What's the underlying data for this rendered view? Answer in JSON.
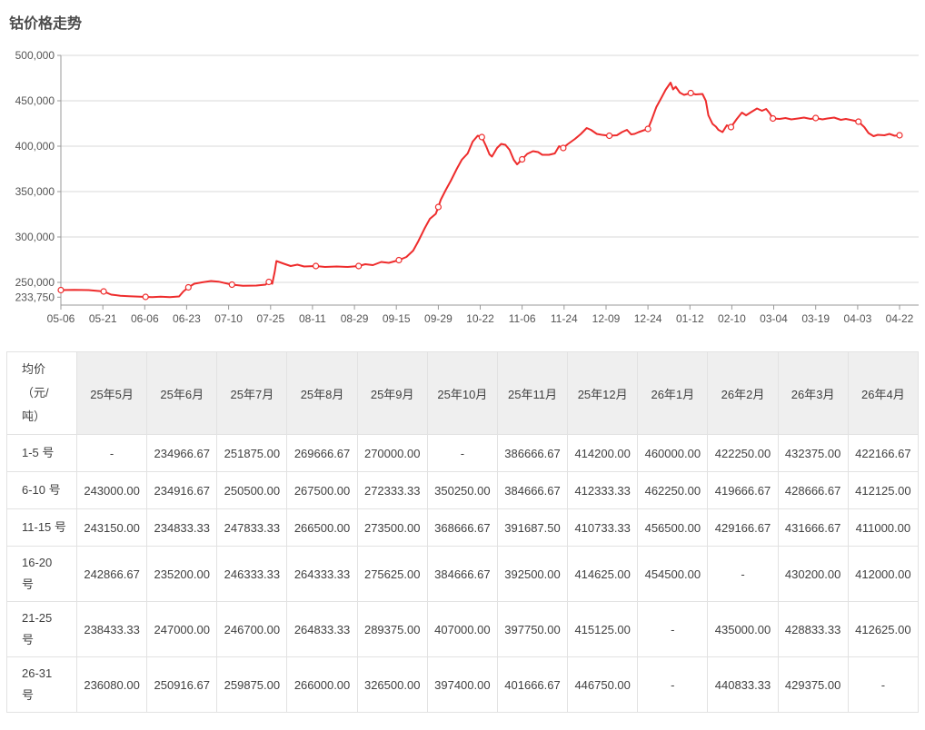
{
  "title": "钴价格走势",
  "chart_data": {
    "type": "line",
    "title": "钴价格走势",
    "xlabel": "",
    "ylabel": "",
    "grid": true,
    "legend": false,
    "colors": {
      "line": "#ee2c2c",
      "grid": "#d9d9d9",
      "axis": "#999999"
    },
    "axis": {
      "ymin": 225000,
      "ymax": 500000,
      "yticks": [
        {
          "value": 250000,
          "label": "250,000"
        },
        {
          "value": 300000,
          "label": "300,000"
        },
        {
          "value": 350000,
          "label": "350,000"
        },
        {
          "value": 400000,
          "label": "400,000"
        },
        {
          "value": 450000,
          "label": "450,000"
        },
        {
          "value": 500000,
          "label": "500,000"
        }
      ],
      "ymin_point": {
        "value": 233750,
        "label": "233,750"
      },
      "xticks": [
        "05-06",
        "05-21",
        "06-06",
        "06-23",
        "07-10",
        "07-25",
        "08-11",
        "08-29",
        "09-15",
        "09-29",
        "10-22",
        "11-06",
        "11-24",
        "12-09",
        "12-24",
        "01-12",
        "02-10",
        "03-04",
        "03-19",
        "04-03",
        "04-22"
      ]
    },
    "series": [
      {
        "name": "钴均价(元/吨)",
        "color": "#ee2c2c",
        "points": [
          [
            0,
            241500
          ],
          [
            1.6,
            241800
          ],
          [
            3.3,
            241500
          ],
          [
            5.1,
            240000
          ],
          [
            6,
            236500
          ],
          [
            7.1,
            235300
          ],
          [
            8.1,
            234800
          ],
          [
            10.1,
            234000
          ],
          [
            10.9,
            233800
          ],
          [
            11.9,
            234300
          ],
          [
            13,
            233750
          ],
          [
            14.1,
            234500
          ],
          [
            14.6,
            240000
          ],
          [
            15.2,
            244500
          ],
          [
            15.9,
            248500
          ],
          [
            16.8,
            250000
          ],
          [
            17.9,
            251500
          ],
          [
            18.8,
            250800
          ],
          [
            20.4,
            247500
          ],
          [
            21.7,
            246300
          ],
          [
            23.3,
            246500
          ],
          [
            24.4,
            247500
          ],
          [
            24.8,
            250500
          ],
          [
            25.2,
            248500
          ],
          [
            25.5,
            262000
          ],
          [
            25.7,
            273500
          ],
          [
            26.6,
            270500
          ],
          [
            27.4,
            268000
          ],
          [
            28.2,
            269500
          ],
          [
            29,
            267500
          ],
          [
            30.4,
            268000
          ],
          [
            31.5,
            267000
          ],
          [
            32.9,
            267500
          ],
          [
            34.2,
            267000
          ],
          [
            35.5,
            268000
          ],
          [
            36.3,
            270000
          ],
          [
            37.2,
            269000
          ],
          [
            38.2,
            272500
          ],
          [
            39.1,
            271500
          ],
          [
            40.3,
            274500
          ],
          [
            41.2,
            278000
          ],
          [
            42,
            285000
          ],
          [
            42.6,
            295000
          ],
          [
            43.4,
            310000
          ],
          [
            44,
            320000
          ],
          [
            44.7,
            325500
          ],
          [
            45,
            333000
          ],
          [
            45.3,
            341000
          ],
          [
            45.9,
            352000
          ],
          [
            46.5,
            362000
          ],
          [
            47.2,
            375000
          ],
          [
            47.8,
            385000
          ],
          [
            48.5,
            392000
          ],
          [
            49.1,
            405000
          ],
          [
            49.7,
            411500
          ],
          [
            50.2,
            410000
          ],
          [
            50.7,
            400000
          ],
          [
            51.1,
            391000
          ],
          [
            51.4,
            388500
          ],
          [
            52,
            398000
          ],
          [
            52.5,
            402500
          ],
          [
            53,
            401500
          ],
          [
            53.5,
            396000
          ],
          [
            54,
            385000
          ],
          [
            54.4,
            380000
          ],
          [
            55,
            385500
          ],
          [
            55.6,
            391500
          ],
          [
            56.3,
            394500
          ],
          [
            56.9,
            393500
          ],
          [
            57.4,
            390500
          ],
          [
            58.2,
            390500
          ],
          [
            58.9,
            392000
          ],
          [
            59.4,
            400000
          ],
          [
            59.9,
            398000
          ],
          [
            60.4,
            402000
          ],
          [
            61.3,
            408000
          ],
          [
            62,
            413500
          ],
          [
            62.7,
            420000
          ],
          [
            63.2,
            418000
          ],
          [
            63.9,
            413500
          ],
          [
            64.5,
            412500
          ],
          [
            65.4,
            411500
          ],
          [
            66.3,
            412000
          ],
          [
            66.9,
            415500
          ],
          [
            67.5,
            418000
          ],
          [
            68,
            413000
          ],
          [
            68.4,
            413500
          ],
          [
            68.9,
            415500
          ],
          [
            69.5,
            417500
          ],
          [
            70,
            419000
          ],
          [
            70.4,
            428000
          ],
          [
            71,
            443000
          ],
          [
            71.7,
            455000
          ],
          [
            72.1,
            462000
          ],
          [
            72.7,
            470000
          ],
          [
            73,
            462500
          ],
          [
            73.3,
            465500
          ],
          [
            73.8,
            459000
          ],
          [
            74.3,
            456500
          ],
          [
            75.1,
            458500
          ],
          [
            75.7,
            457000
          ],
          [
            76.5,
            457500
          ],
          [
            76.9,
            450000
          ],
          [
            77.2,
            434000
          ],
          [
            77.7,
            424500
          ],
          [
            78.1,
            421500
          ],
          [
            78.4,
            418000
          ],
          [
            78.9,
            415500
          ],
          [
            79.4,
            423000
          ],
          [
            79.9,
            421000
          ],
          [
            80.6,
            430000
          ],
          [
            81.2,
            437000
          ],
          [
            81.7,
            434000
          ],
          [
            82.3,
            437500
          ],
          [
            83,
            441500
          ],
          [
            83.6,
            439000
          ],
          [
            84.1,
            441000
          ],
          [
            84.5,
            436500
          ],
          [
            84.9,
            430500
          ],
          [
            85.7,
            430000
          ],
          [
            86.4,
            431000
          ],
          [
            87.1,
            429500
          ],
          [
            87.9,
            430500
          ],
          [
            88.6,
            431500
          ],
          [
            89.4,
            430000
          ],
          [
            90,
            431000
          ],
          [
            90.8,
            429500
          ],
          [
            91.4,
            430500
          ],
          [
            92.2,
            431500
          ],
          [
            93,
            429000
          ],
          [
            93.6,
            430000
          ],
          [
            94.4,
            428500
          ],
          [
            95.1,
            427000
          ],
          [
            95.8,
            421000
          ],
          [
            96.3,
            414500
          ],
          [
            96.9,
            411000
          ],
          [
            97.4,
            412500
          ],
          [
            98.2,
            412000
          ],
          [
            98.8,
            413500
          ],
          [
            99.4,
            411500
          ],
          [
            100,
            412000
          ]
        ]
      }
    ]
  },
  "table": {
    "corner": "均价\n（元/\n吨）",
    "months": [
      "25年5月",
      "25年6月",
      "25年7月",
      "25年8月",
      "25年9月",
      "25年10月",
      "25年11月",
      "25年12月",
      "26年1月",
      "26年2月",
      "26年3月",
      "26年4月"
    ],
    "rows": [
      {
        "label": "1-5 号",
        "values": [
          "-",
          "234966.67",
          "251875.00",
          "269666.67",
          "270000.00",
          "-",
          "386666.67",
          "414200.00",
          "460000.00",
          "422250.00",
          "432375.00",
          "422166.67"
        ]
      },
      {
        "label": "6-10 号",
        "values": [
          "243000.00",
          "234916.67",
          "250500.00",
          "267500.00",
          "272333.33",
          "350250.00",
          "384666.67",
          "412333.33",
          "462250.00",
          "419666.67",
          "428666.67",
          "412125.00"
        ]
      },
      {
        "label": "11-15 号",
        "values": [
          "243150.00",
          "234833.33",
          "247833.33",
          "266500.00",
          "273500.00",
          "368666.67",
          "391687.50",
          "410733.33",
          "456500.00",
          "429166.67",
          "431666.67",
          "411000.00"
        ]
      },
      {
        "label": "16-20\n号",
        "values": [
          "242866.67",
          "235200.00",
          "246333.33",
          "264333.33",
          "275625.00",
          "384666.67",
          "392500.00",
          "414625.00",
          "454500.00",
          "-",
          "430200.00",
          "412000.00"
        ]
      },
      {
        "label": "21-25\n号",
        "values": [
          "238433.33",
          "247000.00",
          "246700.00",
          "264833.33",
          "289375.00",
          "407000.00",
          "397750.00",
          "415125.00",
          "-",
          "435000.00",
          "428833.33",
          "412625.00"
        ]
      },
      {
        "label": "26-31\n号",
        "values": [
          "236080.00",
          "250916.67",
          "259875.00",
          "266000.00",
          "326500.00",
          "397400.00",
          "401666.67",
          "446750.00",
          "-",
          "440833.33",
          "429375.00",
          "-"
        ]
      }
    ]
  }
}
